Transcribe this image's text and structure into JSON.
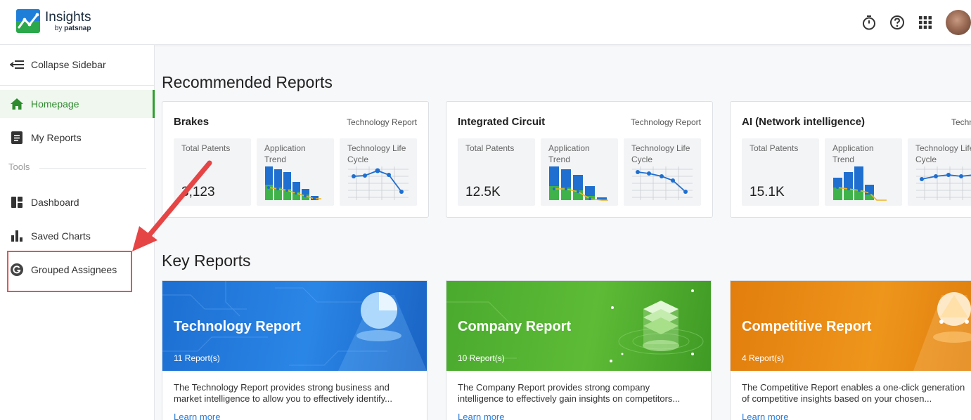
{
  "header": {
    "app_title": "Insights",
    "app_sub_prefix": "by ",
    "app_sub_brand": "patsnap",
    "icons": [
      "timer-icon",
      "help-icon",
      "apps-grid-icon",
      "avatar"
    ]
  },
  "sidebar": {
    "collapse_label": "Collapse Sidebar",
    "items": [
      {
        "label": "Homepage",
        "icon": "home-icon",
        "active": true
      },
      {
        "label": "My Reports",
        "icon": "document-icon"
      }
    ],
    "tools_label": "Tools",
    "tools": [
      {
        "label": "Dashboard",
        "icon": "dashboard-icon"
      },
      {
        "label": "Saved Charts",
        "icon": "bar-chart-icon"
      },
      {
        "label": "Grouped Assignees",
        "icon": "g-circle-icon"
      }
    ]
  },
  "recommended": {
    "title": "Recommended Reports",
    "cards": [
      {
        "name": "Brakes",
        "type": "Technology Report",
        "total_label": "Total Patents",
        "total_value": "3,123",
        "trend_label": "Application Trend",
        "cycle_label": "Technology Life Cycle"
      },
      {
        "name": "Integrated Circuit",
        "type": "Technology Report",
        "total_label": "Total Patents",
        "total_value": "12.5K",
        "trend_label": "Application Trend",
        "cycle_label": "Technology Life Cycle"
      },
      {
        "name": "AI (Network intelligence)",
        "type": "Technology Report",
        "total_label": "Total Patents",
        "total_value": "15.1K",
        "trend_label": "Application Trend",
        "cycle_label": "Technology Life Cycle"
      }
    ]
  },
  "key": {
    "title": "Key Reports",
    "cards": [
      {
        "title": "Technology Report",
        "count": "11 Report(s)",
        "desc_line1": "The Technology Report provides strong business and",
        "desc_line2": "market intelligence to allow you to effectively identify...",
        "link": "Learn more"
      },
      {
        "title": "Company Report",
        "count": "10 Report(s)",
        "desc_line1": "The Company Report provides strong company",
        "desc_line2": "intelligence to effectively gain insights on competitors...",
        "link": "Learn more"
      },
      {
        "title": "Competitive Report",
        "count": "4 Report(s)",
        "desc_line1": "The Competitive Report enables a one-click generation",
        "desc_line2": "of competitive insights based on your chosen...",
        "link": "Learn more"
      }
    ]
  },
  "colors": {
    "accent_green": "#2e9f2e",
    "highlight_red": "#e45555",
    "tech_blue": "#1e78d6",
    "company_green": "#45a82a",
    "competitive_orange": "#e98a10",
    "link_blue": "#2a7bd6"
  }
}
